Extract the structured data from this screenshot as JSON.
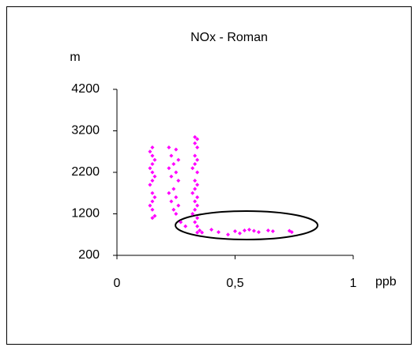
{
  "chart_data": {
    "type": "scatter",
    "title": "NOx - Roman",
    "y_label": "m",
    "x_label": "ppb",
    "color": "#ff00ff",
    "x": [
      0.15,
      0.16,
      0.15,
      0.14,
      0.15,
      0.16,
      0.15,
      0.14,
      0.15,
      0.16,
      0.15,
      0.14,
      0.15,
      0.16,
      0.15,
      0.14,
      0.15,
      0.22,
      0.25,
      0.23,
      0.26,
      0.24,
      0.22,
      0.25,
      0.23,
      0.26,
      0.24,
      0.22,
      0.25,
      0.23,
      0.26,
      0.24,
      0.25,
      0.27,
      0.29,
      0.33,
      0.34,
      0.33,
      0.34,
      0.33,
      0.34,
      0.33,
      0.32,
      0.34,
      0.33,
      0.34,
      0.33,
      0.32,
      0.34,
      0.33,
      0.34,
      0.33,
      0.32,
      0.34,
      0.33,
      0.34,
      0.35,
      0.34,
      0.36,
      0.4,
      0.43,
      0.47,
      0.5,
      0.52,
      0.54,
      0.56,
      0.58,
      0.6,
      0.64,
      0.66,
      0.73,
      0.74
    ],
    "values": [
      1100,
      1150,
      1300,
      1400,
      1500,
      1600,
      1700,
      1900,
      2000,
      2100,
      2200,
      2300,
      2400,
      2500,
      2600,
      2700,
      2800,
      2800,
      2750,
      2600,
      2500,
      2400,
      2300,
      2200,
      2100,
      2000,
      1800,
      1700,
      1600,
      1500,
      1400,
      1300,
      1200,
      1000,
      900,
      3050,
      3000,
      2900,
      2800,
      2600,
      2500,
      2400,
      2300,
      2200,
      2000,
      1900,
      1800,
      1700,
      1600,
      1500,
      1400,
      1300,
      1200,
      1100,
      1000,
      900,
      800,
      750,
      750,
      820,
      760,
      700,
      780,
      730,
      800,
      820,
      790,
      760,
      800,
      780,
      790,
      760
    ],
    "xlim": [
      0,
      1
    ],
    "xticks": [
      0,
      {
        "value": 0.5,
        "label": "0,5"
      },
      1
    ],
    "ylim": [
      200,
      4200
    ],
    "yticks": [
      200,
      1200,
      2200,
      3200,
      4200
    ]
  }
}
